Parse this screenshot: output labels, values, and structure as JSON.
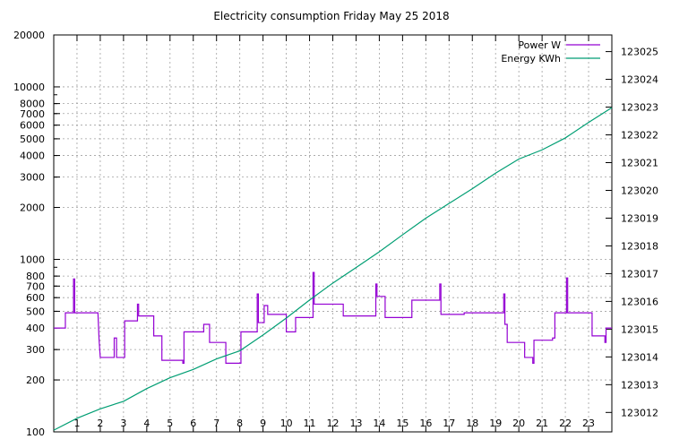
{
  "chart_data": {
    "type": "line",
    "title": "Electricity consumption Friday May 25 2018",
    "xlabel": "",
    "ylabel": "",
    "grid": true,
    "legend_position": "top-right",
    "x_axis": {
      "range": [
        0,
        24
      ],
      "ticks": [
        1,
        2,
        3,
        4,
        5,
        6,
        7,
        8,
        9,
        10,
        11,
        12,
        13,
        14,
        15,
        16,
        17,
        18,
        19,
        20,
        21,
        22,
        23
      ]
    },
    "y_axis_left": {
      "scale": "log",
      "range": [
        100,
        20000
      ],
      "ticks": [
        100,
        200,
        300,
        400,
        500,
        600,
        700,
        800,
        1000,
        2000,
        3000,
        4000,
        5000,
        6000,
        7000,
        8000,
        10000,
        20000
      ]
    },
    "y_axis_right": {
      "scale": "linear",
      "range": [
        123011.3,
        123025.6
      ],
      "ticks": [
        123012,
        123013,
        123014,
        123015,
        123016,
        123017,
        123018,
        123019,
        123020,
        123021,
        123022,
        123023,
        123024,
        123025
      ]
    },
    "series": [
      {
        "name": "Power W",
        "axis": "left",
        "color": "#9400d3",
        "step": true,
        "points": [
          [
            0,
            400
          ],
          [
            0.5,
            400
          ],
          [
            0.5,
            490
          ],
          [
            0.85,
            490
          ],
          [
            0.85,
            770
          ],
          [
            0.9,
            770
          ],
          [
            0.9,
            490
          ],
          [
            1.9,
            490
          ],
          [
            1.95,
            340
          ],
          [
            2.0,
            270
          ],
          [
            2.6,
            270
          ],
          [
            2.6,
            350
          ],
          [
            2.7,
            350
          ],
          [
            2.7,
            270
          ],
          [
            3.05,
            270
          ],
          [
            3.05,
            440
          ],
          [
            3.6,
            440
          ],
          [
            3.6,
            550
          ],
          [
            3.65,
            550
          ],
          [
            3.65,
            470
          ],
          [
            4.3,
            470
          ],
          [
            4.3,
            360
          ],
          [
            4.65,
            360
          ],
          [
            4.65,
            260
          ],
          [
            5.55,
            260
          ],
          [
            5.55,
            250
          ],
          [
            5.6,
            250
          ],
          [
            5.6,
            380
          ],
          [
            6.45,
            380
          ],
          [
            6.45,
            420
          ],
          [
            6.7,
            420
          ],
          [
            6.7,
            330
          ],
          [
            7.4,
            330
          ],
          [
            7.4,
            250
          ],
          [
            8.05,
            250
          ],
          [
            8.05,
            380
          ],
          [
            8.75,
            380
          ],
          [
            8.75,
            630
          ],
          [
            8.8,
            630
          ],
          [
            8.8,
            430
          ],
          [
            9.05,
            430
          ],
          [
            9.05,
            540
          ],
          [
            9.2,
            540
          ],
          [
            9.2,
            480
          ],
          [
            10.0,
            480
          ],
          [
            10.0,
            380
          ],
          [
            10.4,
            380
          ],
          [
            10.4,
            460
          ],
          [
            11.15,
            460
          ],
          [
            11.15,
            840
          ],
          [
            11.2,
            840
          ],
          [
            11.2,
            550
          ],
          [
            12.45,
            550
          ],
          [
            12.45,
            470
          ],
          [
            13.85,
            470
          ],
          [
            13.85,
            720
          ],
          [
            13.9,
            720
          ],
          [
            13.9,
            610
          ],
          [
            14.25,
            610
          ],
          [
            14.25,
            460
          ],
          [
            15.4,
            460
          ],
          [
            15.4,
            580
          ],
          [
            16.6,
            580
          ],
          [
            16.6,
            720
          ],
          [
            16.65,
            720
          ],
          [
            16.65,
            480
          ],
          [
            17.65,
            480
          ],
          [
            17.65,
            490
          ],
          [
            19.35,
            490
          ],
          [
            19.35,
            630
          ],
          [
            19.4,
            630
          ],
          [
            19.4,
            420
          ],
          [
            19.5,
            420
          ],
          [
            19.5,
            330
          ],
          [
            20.25,
            330
          ],
          [
            20.25,
            270
          ],
          [
            20.6,
            270
          ],
          [
            20.6,
            250
          ],
          [
            20.65,
            250
          ],
          [
            20.65,
            340
          ],
          [
            21.45,
            340
          ],
          [
            21.45,
            350
          ],
          [
            21.55,
            350
          ],
          [
            21.55,
            490
          ],
          [
            22.05,
            490
          ],
          [
            22.05,
            780
          ],
          [
            22.1,
            780
          ],
          [
            22.1,
            490
          ],
          [
            23.15,
            490
          ],
          [
            23.15,
            360
          ],
          [
            23.7,
            360
          ],
          [
            23.7,
            330
          ],
          [
            23.75,
            330
          ],
          [
            23.75,
            400
          ],
          [
            24,
            400
          ]
        ]
      },
      {
        "name": "Energy KWh",
        "axis": "right",
        "color": "#009e73",
        "step": false,
        "points": [
          [
            0,
            123011.36
          ],
          [
            1,
            123011.79
          ],
          [
            2,
            123012.13
          ],
          [
            3,
            123012.4
          ],
          [
            4,
            123012.86
          ],
          [
            5,
            123013.25
          ],
          [
            6,
            123013.55
          ],
          [
            7,
            123013.93
          ],
          [
            8,
            123014.22
          ],
          [
            9,
            123014.79
          ],
          [
            10,
            123015.4
          ],
          [
            11,
            123016.05
          ],
          [
            12,
            123016.66
          ],
          [
            13,
            123017.22
          ],
          [
            14,
            123017.79
          ],
          [
            15,
            123018.4
          ],
          [
            16,
            123019.0
          ],
          [
            17,
            123019.53
          ],
          [
            18,
            123020.06
          ],
          [
            19,
            123020.62
          ],
          [
            20,
            123021.13
          ],
          [
            21,
            123021.46
          ],
          [
            22,
            123021.89
          ],
          [
            23,
            123022.45
          ],
          [
            24,
            123022.98
          ]
        ]
      }
    ]
  }
}
